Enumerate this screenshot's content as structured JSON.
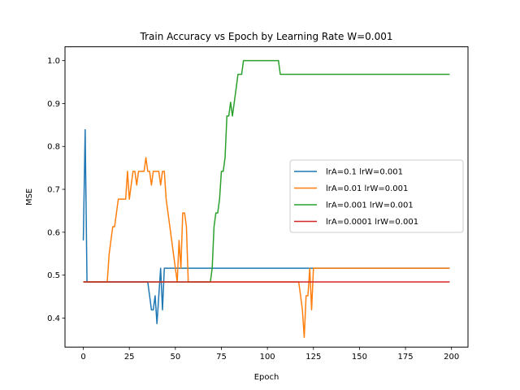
{
  "chart_data": {
    "type": "line",
    "title": "Train Accuracy vs Epoch by Learning Rate W=0.001",
    "xlabel": "Epoch",
    "ylabel": "MSE",
    "xlim": [
      -9.95,
      208.95
    ],
    "ylim": [
      0.3322,
      1.0323
    ],
    "xticks": [
      0,
      25,
      50,
      75,
      100,
      125,
      150,
      175,
      200
    ],
    "yticks": [
      0.4,
      0.5,
      0.6,
      0.7,
      0.8,
      0.9,
      1.0
    ],
    "ytick_labels": [
      "0.4",
      "0.5",
      "0.6",
      "0.7",
      "0.8",
      "0.9",
      "1.0"
    ],
    "grid": false,
    "legend_position": "center-right",
    "series": [
      {
        "name": "lrA=0.1 lrW=0.001",
        "color": "#1f77b4",
        "points": [
          [
            0,
            0.581
          ],
          [
            1,
            0.839
          ],
          [
            2,
            0.484
          ],
          [
            3,
            0.484
          ],
          [
            35,
            0.484
          ],
          [
            36,
            0.452
          ],
          [
            37,
            0.419
          ],
          [
            38,
            0.419
          ],
          [
            39,
            0.452
          ],
          [
            40,
            0.387
          ],
          [
            41,
            0.452
          ],
          [
            42,
            0.516
          ],
          [
            43,
            0.419
          ],
          [
            44,
            0.516
          ],
          [
            199,
            0.516
          ]
        ]
      },
      {
        "name": "lrA=0.01 lrW=0.001",
        "color": "#ff7f0e",
        "points": [
          [
            0,
            0.484
          ],
          [
            13,
            0.484
          ],
          [
            14,
            0.548
          ],
          [
            15,
            0.581
          ],
          [
            16,
            0.613
          ],
          [
            17,
            0.613
          ],
          [
            18,
            0.645
          ],
          [
            19,
            0.677
          ],
          [
            20,
            0.677
          ],
          [
            21,
            0.677
          ],
          [
            22,
            0.677
          ],
          [
            23,
            0.677
          ],
          [
            24,
            0.742
          ],
          [
            25,
            0.677
          ],
          [
            26,
            0.71
          ],
          [
            27,
            0.742
          ],
          [
            28,
            0.742
          ],
          [
            29,
            0.71
          ],
          [
            30,
            0.742
          ],
          [
            31,
            0.742
          ],
          [
            32,
            0.742
          ],
          [
            33,
            0.742
          ],
          [
            34,
            0.774
          ],
          [
            35,
            0.742
          ],
          [
            36,
            0.742
          ],
          [
            37,
            0.71
          ],
          [
            38,
            0.742
          ],
          [
            39,
            0.742
          ],
          [
            40,
            0.742
          ],
          [
            41,
            0.742
          ],
          [
            42,
            0.71
          ],
          [
            43,
            0.742
          ],
          [
            44,
            0.742
          ],
          [
            45,
            0.677
          ],
          [
            46,
            0.645
          ],
          [
            47,
            0.613
          ],
          [
            48,
            0.581
          ],
          [
            49,
            0.548
          ],
          [
            50,
            0.516
          ],
          [
            51,
            0.484
          ],
          [
            52,
            0.581
          ],
          [
            53,
            0.516
          ],
          [
            54,
            0.645
          ],
          [
            55,
            0.645
          ],
          [
            56,
            0.613
          ],
          [
            57,
            0.484
          ],
          [
            117,
            0.484
          ],
          [
            118,
            0.452
          ],
          [
            119,
            0.419
          ],
          [
            120,
            0.355
          ],
          [
            121,
            0.452
          ],
          [
            122,
            0.452
          ],
          [
            123,
            0.516
          ],
          [
            124,
            0.419
          ],
          [
            125,
            0.516
          ],
          [
            199,
            0.516
          ]
        ]
      },
      {
        "name": "lrA=0.001 lrW=0.001",
        "color": "#2ca02c",
        "points": [
          [
            0,
            0.484
          ],
          [
            69,
            0.484
          ],
          [
            70,
            0.516
          ],
          [
            71,
            0.613
          ],
          [
            72,
            0.645
          ],
          [
            73,
            0.645
          ],
          [
            74,
            0.677
          ],
          [
            75,
            0.742
          ],
          [
            76,
            0.742
          ],
          [
            77,
            0.774
          ],
          [
            78,
            0.871
          ],
          [
            79,
            0.871
          ],
          [
            80,
            0.903
          ],
          [
            81,
            0.871
          ],
          [
            82,
            0.903
          ],
          [
            83,
            0.935
          ],
          [
            84,
            0.968
          ],
          [
            85,
            0.968
          ],
          [
            86,
            0.968
          ],
          [
            87,
            1.0
          ],
          [
            106,
            1.0
          ],
          [
            107,
            0.968
          ],
          [
            199,
            0.968
          ]
        ]
      },
      {
        "name": "lrA=0.0001 lrW=0.001",
        "color": "#d62728",
        "points": [
          [
            0,
            0.484
          ],
          [
            199,
            0.484
          ]
        ]
      }
    ]
  }
}
